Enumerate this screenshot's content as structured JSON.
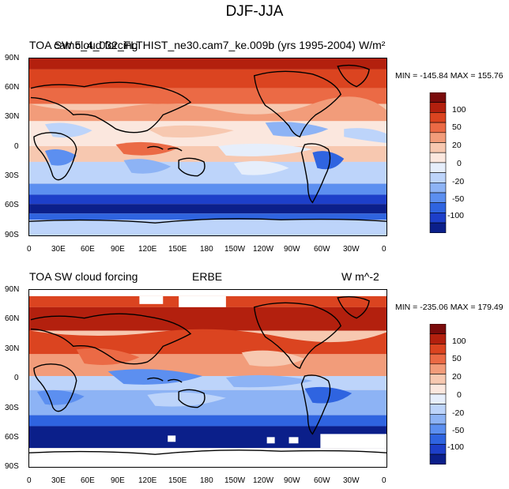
{
  "title": "DJF-JJA",
  "colors": {
    "levels": [
      "#0b1f8a",
      "#1d3fc9",
      "#2f64e0",
      "#5c8ff0",
      "#8db3f5",
      "#bdd4fa",
      "#e6eefb",
      "#fbe7de",
      "#f7c8b0",
      "#f29c7a",
      "#eb6a45",
      "#db4420",
      "#b3200e",
      "#7a0b0b"
    ]
  },
  "panels": [
    {
      "left_title": "TOA SW cloud forcing",
      "center_title": "cam5_4_032_FLTHIST_ne30.cam7_ke.009b (yrs 1995-2004)",
      "units": "W/m²",
      "stats": "MIN = -145.84 MAX = 155.76",
      "colorbar_labels": [
        "100",
        "50",
        "20",
        "0",
        "-20",
        "-50",
        "-100"
      ],
      "lat_labels": [
        "90N",
        "60N",
        "30N",
        "0",
        "30S",
        "60S",
        "90S"
      ],
      "lon_labels": [
        "0",
        "30E",
        "60E",
        "90E",
        "120E",
        "150E",
        "180",
        "150W",
        "120W",
        "90W",
        "60W",
        "30W",
        "0"
      ]
    },
    {
      "left_title": "TOA SW cloud forcing",
      "center_title": "ERBE",
      "units": "W m^-2",
      "stats": "MIN = -235.06 MAX = 179.49",
      "colorbar_labels": [
        "100",
        "50",
        "20",
        "0",
        "-20",
        "-50",
        "-100"
      ],
      "lat_labels": [
        "90N",
        "60N",
        "30N",
        "0",
        "30S",
        "60S",
        "90S"
      ],
      "lon_labels": [
        "0",
        "30E",
        "60E",
        "90E",
        "120E",
        "150E",
        "180",
        "150W",
        "120W",
        "90W",
        "60W",
        "30W",
        "0"
      ]
    }
  ]
}
